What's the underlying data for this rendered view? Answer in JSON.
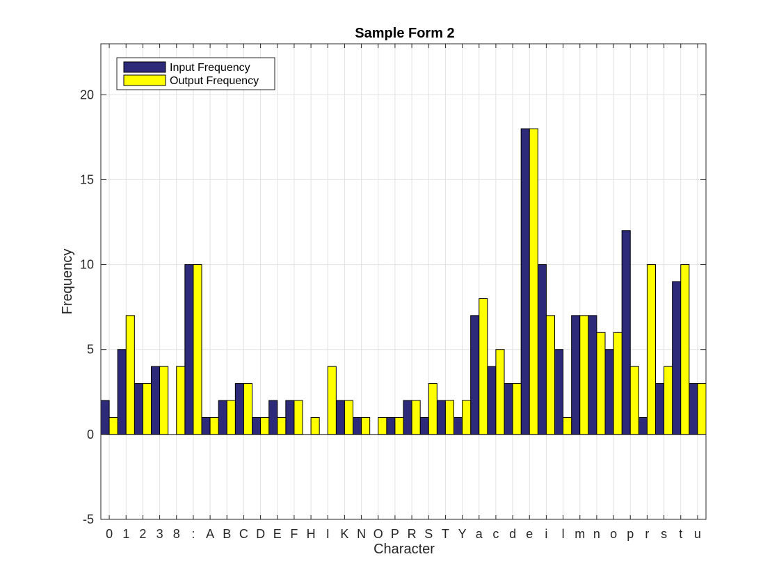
{
  "chart_data": {
    "type": "bar",
    "title": "Sample Form 2",
    "xlabel": "Character",
    "ylabel": "Frequency",
    "ylim": [
      -5,
      23
    ],
    "yticks": [
      -5,
      0,
      5,
      10,
      15,
      20
    ],
    "grid": true,
    "legend_position": "top-left",
    "categories": [
      "0",
      "1",
      "2",
      "3",
      "8",
      ":",
      "A",
      "B",
      "C",
      "D",
      "E",
      "F",
      "H",
      "I",
      "K",
      "N",
      "O",
      "P",
      "R",
      "S",
      "T",
      "Y",
      "a",
      "c",
      "d",
      "e",
      "i",
      "l",
      "m",
      "n",
      "o",
      "p",
      "r",
      "s",
      "t",
      "u"
    ],
    "series": [
      {
        "name": "Input Frequency",
        "color": "#2e2a7a",
        "values": [
          2,
          5,
          3,
          4,
          0,
          10,
          1,
          2,
          3,
          1,
          2,
          2,
          0,
          0,
          2,
          1,
          0,
          1,
          2,
          1,
          2,
          1,
          7,
          4,
          3,
          18,
          10,
          5,
          7,
          7,
          5,
          12,
          1,
          3,
          9,
          3
        ]
      },
      {
        "name": "Output Frequency",
        "color": "#ffff00",
        "values": [
          1,
          7,
          3,
          4,
          4,
          10,
          1,
          2,
          3,
          1,
          1,
          2,
          1,
          4,
          2,
          1,
          1,
          1,
          2,
          3,
          2,
          2,
          8,
          5,
          3,
          18,
          7,
          1,
          7,
          6,
          6,
          4,
          10,
          4,
          10,
          3
        ]
      }
    ]
  }
}
